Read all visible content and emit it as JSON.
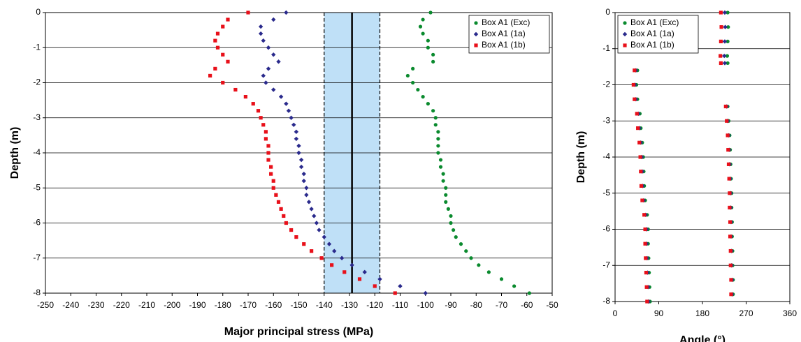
{
  "chart_data": [
    {
      "type": "scatter",
      "xlabel": "Major principal stress (MPa)",
      "ylabel": "Depth (m)",
      "xlim": [
        -250,
        -50
      ],
      "xticks": [
        -250,
        -240,
        -230,
        -220,
        -210,
        -200,
        -190,
        -180,
        -170,
        -160,
        -150,
        -140,
        -130,
        -120,
        -110,
        -100,
        -90,
        -80,
        -70,
        -60,
        -50
      ],
      "ylim": [
        -8,
        0
      ],
      "yticks": [
        0,
        -1,
        -2,
        -3,
        -4,
        -5,
        -6,
        -7,
        -8
      ],
      "grid": true,
      "legend": "top-right",
      "band": [
        -140,
        -118
      ],
      "band_color": "#bfe0f7",
      "center_line": -129,
      "series": [
        {
          "name": "Box A1 (Exc)",
          "color": "#0a8a2e",
          "marker": "circle",
          "x": [
            -98,
            -101,
            -102,
            -101,
            -99,
            -99,
            -97,
            -97,
            -105,
            -107,
            -105,
            -103,
            -101,
            -99,
            -97,
            -96,
            -96,
            -95,
            -95,
            -95,
            -95,
            -94,
            -94,
            -93,
            -93,
            -92,
            -92,
            -92,
            -91,
            -90,
            -90,
            -89,
            -88,
            -86,
            -84,
            -82,
            -79,
            -75,
            -70,
            -65,
            -59
          ],
          "y": [
            0,
            -0.2,
            -0.4,
            -0.6,
            -0.8,
            -1,
            -1.2,
            -1.4,
            -1.6,
            -1.8,
            -2,
            -2.2,
            -2.4,
            -2.6,
            -2.8,
            -3,
            -3.2,
            -3.4,
            -3.6,
            -3.8,
            -4,
            -4.2,
            -4.4,
            -4.6,
            -4.8,
            -5,
            -5.2,
            -5.4,
            -5.6,
            -5.8,
            -6,
            -6.2,
            -6.4,
            -6.6,
            -6.8,
            -7,
            -7.2,
            -7.4,
            -7.6,
            -7.8,
            -8
          ]
        },
        {
          "name": "Box A1 (1a)",
          "color": "#2a2a8c",
          "marker": "diamond",
          "x": [
            -155,
            -160,
            -165,
            -165,
            -164,
            -162,
            -160,
            -158,
            -162,
            -164,
            -163,
            -160,
            -157,
            -155,
            -154,
            -153,
            -152,
            -151,
            -151,
            -150,
            -150,
            -149,
            -149,
            -148,
            -148,
            -147,
            -147,
            -146,
            -145,
            -144,
            -143,
            -142,
            -140,
            -138,
            -136,
            -133,
            -129,
            -124,
            -118,
            -110,
            -100
          ],
          "y": [
            0,
            -0.2,
            -0.4,
            -0.6,
            -0.8,
            -1,
            -1.2,
            -1.4,
            -1.6,
            -1.8,
            -2,
            -2.2,
            -2.4,
            -2.6,
            -2.8,
            -3,
            -3.2,
            -3.4,
            -3.6,
            -3.8,
            -4,
            -4.2,
            -4.4,
            -4.6,
            -4.8,
            -5,
            -5.2,
            -5.4,
            -5.6,
            -5.8,
            -6,
            -6.2,
            -6.4,
            -6.6,
            -6.8,
            -7,
            -7.2,
            -7.4,
            -7.6,
            -7.8,
            -8
          ]
        },
        {
          "name": "Box A1 (1b)",
          "color": "#e8101a",
          "marker": "square",
          "x": [
            -170,
            -178,
            -180,
            -182,
            -183,
            -182,
            -180,
            -178,
            -183,
            -185,
            -180,
            -175,
            -171,
            -168,
            -166,
            -165,
            -164,
            -163,
            -163,
            -162,
            -162,
            -162,
            -161,
            -161,
            -160,
            -160,
            -159,
            -158,
            -157,
            -156,
            -155,
            -153,
            -151,
            -148,
            -145,
            -141,
            -137,
            -132,
            -126,
            -120,
            -112
          ],
          "y": [
            0,
            -0.2,
            -0.4,
            -0.6,
            -0.8,
            -1,
            -1.2,
            -1.4,
            -1.6,
            -1.8,
            -2,
            -2.2,
            -2.4,
            -2.6,
            -2.8,
            -3,
            -3.2,
            -3.4,
            -3.6,
            -3.8,
            -4,
            -4.2,
            -4.4,
            -4.6,
            -4.8,
            -5,
            -5.2,
            -5.4,
            -5.6,
            -5.8,
            -6,
            -6.2,
            -6.4,
            -6.6,
            -6.8,
            -7,
            -7.2,
            -7.4,
            -7.6,
            -7.8,
            -8
          ]
        }
      ]
    },
    {
      "type": "scatter",
      "xlabel": "Angle (°)",
      "ylabel": "Depth (m)",
      "xlim": [
        0,
        360
      ],
      "xticks": [
        0,
        90,
        180,
        270,
        360
      ],
      "ylim": [
        -8,
        0
      ],
      "yticks": [
        0,
        -1,
        -2,
        -3,
        -4,
        -5,
        -6,
        -7,
        -8
      ],
      "grid": true,
      "legend": "top-left",
      "series": [
        {
          "name": "Box A1 (Exc)",
          "color": "#0a8a2e",
          "marker": "circle",
          "x": [
            232,
            233,
            232,
            231,
            232,
            46,
            44,
            46,
            51,
            53,
            56,
            58,
            59,
            60,
            62,
            66,
            68,
            68,
            69,
            70,
            71,
            72,
            232,
            234,
            236,
            237,
            238,
            239,
            240,
            240,
            241,
            241,
            242,
            242,
            243,
            243
          ],
          "y": [
            0,
            -0.4,
            -0.8,
            -1.2,
            -1.4,
            -1.6,
            -2,
            -2.4,
            -2.8,
            -3.2,
            -3.6,
            -4,
            -4.4,
            -4.8,
            -5.2,
            -5.6,
            -6,
            -6.4,
            -6.8,
            -7.2,
            -7.6,
            -8,
            -2.6,
            -3,
            -3.4,
            -3.8,
            -4.2,
            -4.6,
            -5,
            -5.4,
            -5.8,
            -6.2,
            -6.6,
            -7,
            -7.4,
            -7.8
          ]
        },
        {
          "name": "Box A1 (1a)",
          "color": "#2a2a8c",
          "marker": "diamond",
          "x": [
            226,
            227,
            226,
            225,
            226,
            43,
            41,
            43,
            48,
            50,
            53,
            55,
            56,
            57,
            59,
            63,
            65,
            65,
            66,
            67,
            68,
            69,
            230,
            232,
            234,
            235,
            236,
            237,
            238,
            238,
            239,
            239,
            240,
            240,
            241,
            241
          ],
          "y": [
            0,
            -0.4,
            -0.8,
            -1.2,
            -1.4,
            -1.6,
            -2,
            -2.4,
            -2.8,
            -3.2,
            -3.6,
            -4,
            -4.4,
            -4.8,
            -5.2,
            -5.6,
            -6,
            -6.4,
            -6.8,
            -7.2,
            -7.6,
            -8,
            -2.6,
            -3,
            -3.4,
            -3.8,
            -4.2,
            -4.6,
            -5,
            -5.4,
            -5.8,
            -6.2,
            -6.6,
            -7,
            -7.4,
            -7.8
          ]
        },
        {
          "name": "Box A1 (1b)",
          "color": "#e8101a",
          "marker": "square",
          "x": [
            218,
            219,
            218,
            217,
            218,
            40,
            38,
            40,
            45,
            47,
            50,
            52,
            53,
            54,
            56,
            60,
            62,
            62,
            63,
            64,
            65,
            66,
            228,
            230,
            232,
            233,
            234,
            235,
            236,
            236,
            237,
            237,
            238,
            238,
            239,
            239
          ],
          "y": [
            0,
            -0.4,
            -0.8,
            -1.2,
            -1.4,
            -1.6,
            -2,
            -2.4,
            -2.8,
            -3.2,
            -3.6,
            -4,
            -4.4,
            -4.8,
            -5.2,
            -5.6,
            -6,
            -6.4,
            -6.8,
            -7.2,
            -7.6,
            -8,
            -2.6,
            -3,
            -3.4,
            -3.8,
            -4.2,
            -4.6,
            -5,
            -5.4,
            -5.8,
            -6.2,
            -6.6,
            -7,
            -7.4,
            -7.8
          ]
        }
      ]
    }
  ]
}
